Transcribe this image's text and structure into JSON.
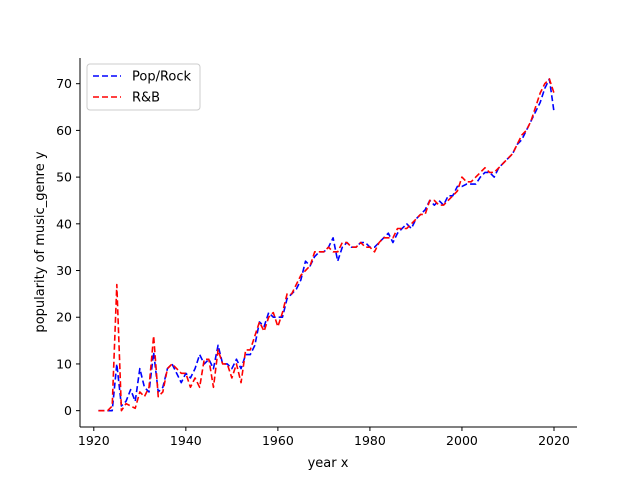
{
  "chart_data": {
    "type": "line",
    "title": "",
    "xlabel": "year x",
    "ylabel": "popularity of music_genre y",
    "xlim": [
      1917,
      2025
    ],
    "ylim": [
      -3.5,
      75.5
    ],
    "x_ticks": [
      1920,
      1940,
      1960,
      1980,
      2000,
      2020
    ],
    "y_ticks": [
      0,
      10,
      20,
      30,
      40,
      50,
      60,
      70
    ],
    "grid": false,
    "legend_position": "upper-left",
    "x": [
      1921,
      1922,
      1923,
      1924,
      1925,
      1926,
      1927,
      1928,
      1929,
      1930,
      1931,
      1932,
      1933,
      1934,
      1935,
      1936,
      1937,
      1938,
      1939,
      1940,
      1941,
      1942,
      1943,
      1944,
      1945,
      1946,
      1947,
      1948,
      1949,
      1950,
      1951,
      1952,
      1953,
      1954,
      1955,
      1956,
      1957,
      1958,
      1959,
      1960,
      1961,
      1962,
      1963,
      1964,
      1965,
      1966,
      1967,
      1968,
      1969,
      1970,
      1971,
      1972,
      1973,
      1974,
      1975,
      1976,
      1977,
      1978,
      1979,
      1980,
      1981,
      1982,
      1983,
      1984,
      1985,
      1986,
      1987,
      1988,
      1989,
      1990,
      1991,
      1992,
      1993,
      1994,
      1995,
      1996,
      1997,
      1998,
      1999,
      2000,
      2001,
      2002,
      2003,
      2004,
      2005,
      2006,
      2007,
      2008,
      2009,
      2010,
      2011,
      2012,
      2013,
      2014,
      2015,
      2016,
      2017,
      2018,
      2019,
      2020
    ],
    "series": [
      {
        "name": "Pop/Rock",
        "color": "#0000ff",
        "values": [
          0,
          0,
          0,
          0,
          10,
          1,
          2,
          4.5,
          2,
          9,
          5,
          4,
          12.5,
          4,
          5,
          9,
          10,
          8,
          6,
          8,
          7,
          9,
          12,
          10,
          11,
          9,
          14,
          10,
          10,
          9,
          11,
          9,
          12,
          12,
          14,
          19,
          18,
          21,
          20,
          20,
          20,
          24,
          25,
          26,
          28,
          32,
          31,
          33,
          34,
          34,
          35,
          37,
          32,
          35,
          36,
          35,
          35,
          36,
          36,
          35,
          35,
          36,
          37,
          38,
          36,
          38,
          39,
          40,
          39,
          41,
          42,
          43,
          45,
          44,
          45,
          44,
          46,
          46,
          48,
          48,
          48.5,
          48.5,
          48.5,
          50,
          51,
          51,
          50,
          52,
          53,
          54,
          55,
          57,
          58,
          60,
          62,
          64,
          66,
          69,
          71,
          64
        ]
      },
      {
        "name": "R&B",
        "color": "#ff0000",
        "values": [
          0,
          0,
          0,
          1,
          27,
          0,
          1.5,
          1,
          0.5,
          4,
          3,
          5,
          16,
          3,
          4,
          9,
          10,
          9,
          8,
          8,
          5,
          7,
          5,
          11,
          11,
          5,
          13,
          10,
          10,
          7,
          10,
          6,
          13,
          13,
          16,
          19,
          17,
          20,
          21,
          18,
          21,
          25,
          25,
          27,
          29,
          30,
          31,
          34,
          34,
          34,
          35,
          34,
          34,
          36,
          36,
          35,
          35,
          36,
          35,
          35,
          34,
          36,
          37,
          37,
          37,
          39,
          39,
          39,
          40,
          41,
          42,
          42,
          45,
          45,
          44,
          44,
          45,
          46,
          47,
          50,
          49,
          49,
          50,
          51,
          52,
          51,
          51,
          52,
          53,
          54,
          55,
          57,
          59,
          60,
          62,
          65,
          68,
          70,
          71,
          68
        ]
      }
    ]
  }
}
